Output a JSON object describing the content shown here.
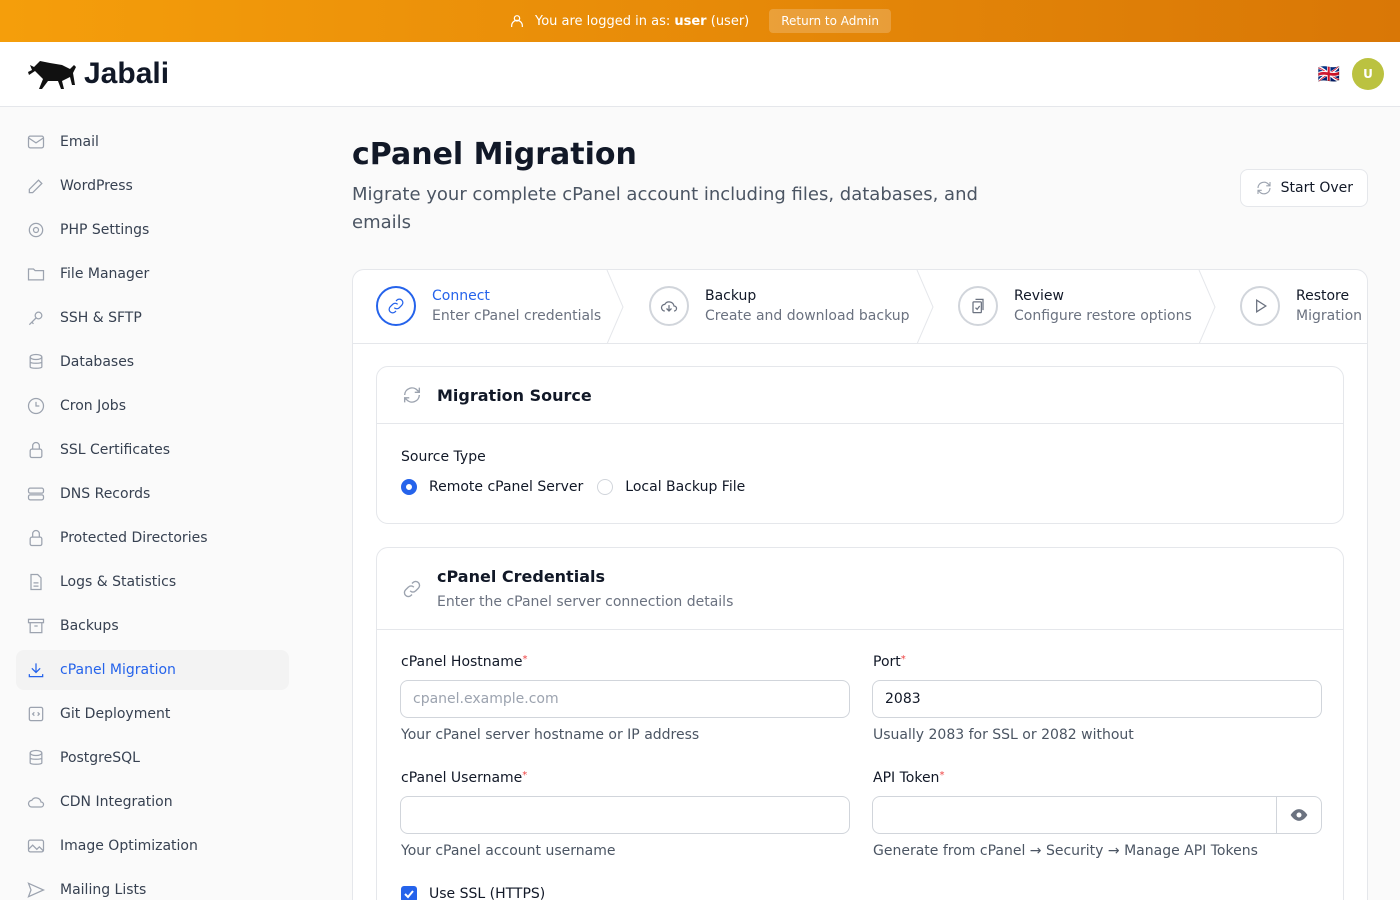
{
  "banner": {
    "prefix": "You are logged in as:",
    "user": "user",
    "role": "(user)",
    "return_label": "Return to Admin"
  },
  "header": {
    "brand": "Jabali",
    "flag": "🇬🇧",
    "avatar": "U"
  },
  "sidebar": {
    "items": [
      {
        "label": "Email",
        "icon": "mail-icon"
      },
      {
        "label": "WordPress",
        "icon": "edit-icon"
      },
      {
        "label": "PHP Settings",
        "icon": "gear-icon"
      },
      {
        "label": "File Manager",
        "icon": "folder-icon"
      },
      {
        "label": "SSH & SFTP",
        "icon": "key-icon"
      },
      {
        "label": "Databases",
        "icon": "database-icon"
      },
      {
        "label": "Cron Jobs",
        "icon": "clock-icon"
      },
      {
        "label": "SSL Certificates",
        "icon": "lock-icon"
      },
      {
        "label": "DNS Records",
        "icon": "server-icon"
      },
      {
        "label": "Protected Directories",
        "icon": "lock-icon"
      },
      {
        "label": "Logs & Statistics",
        "icon": "document-icon"
      },
      {
        "label": "Backups",
        "icon": "archive-icon"
      },
      {
        "label": "cPanel Migration",
        "icon": "download-icon",
        "active": true
      },
      {
        "label": "Git Deployment",
        "icon": "code-icon"
      },
      {
        "label": "PostgreSQL",
        "icon": "database-icon"
      },
      {
        "label": "CDN Integration",
        "icon": "cloud-icon"
      },
      {
        "label": "Image Optimization",
        "icon": "image-icon"
      },
      {
        "label": "Mailing Lists",
        "icon": "send-icon"
      }
    ]
  },
  "page": {
    "title": "cPanel Migration",
    "subtitle": "Migrate your complete cPanel account including files, databases, and emails",
    "start_over": "Start Over"
  },
  "steps": [
    {
      "title": "Connect",
      "desc": "Enter cPanel credentials"
    },
    {
      "title": "Backup",
      "desc": "Create and download backup"
    },
    {
      "title": "Review",
      "desc": "Configure restore options"
    },
    {
      "title": "Restore",
      "desc": "Migration progress"
    }
  ],
  "source": {
    "title": "Migration Source",
    "type_label": "Source Type",
    "options": [
      "Remote cPanel Server",
      "Local Backup File"
    ],
    "selected": "Remote cPanel Server"
  },
  "creds": {
    "title": "cPanel Credentials",
    "desc": "Enter the cPanel server connection details",
    "hostname": {
      "label": "cPanel Hostname",
      "placeholder": "cpanel.example.com",
      "value": "",
      "hint": "Your cPanel server hostname or IP address"
    },
    "port": {
      "label": "Port",
      "value": "2083",
      "hint": "Usually 2083 for SSL or 2082 without"
    },
    "username": {
      "label": "cPanel Username",
      "value": "",
      "hint": "Your cPanel account username"
    },
    "token": {
      "label": "API Token",
      "value": "",
      "hint": "Generate from cPanel → Security → Manage API Tokens"
    },
    "ssl": {
      "label": "Use SSL (HTTPS)",
      "checked": true
    }
  }
}
